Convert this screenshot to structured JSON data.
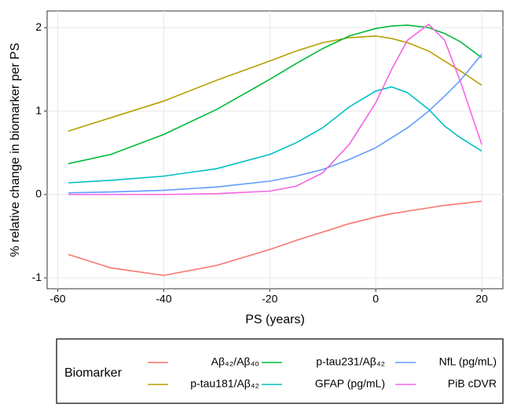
{
  "chart_data": {
    "type": "line",
    "x_label": "PS (years)",
    "y_label": "% relative change in biomarker per PS",
    "x": [
      -58,
      -50,
      -40,
      -30,
      -20,
      -15,
      -10,
      -5,
      0,
      3,
      6,
      10,
      13,
      16,
      20
    ],
    "series": [
      {
        "name": "Aβ₄₂/Aβ₄₀",
        "color": "#F8766D",
        "values": [
          -0.72,
          -0.88,
          -0.97,
          -0.85,
          -0.66,
          -0.55,
          -0.45,
          -0.35,
          -0.27,
          -0.23,
          -0.2,
          -0.16,
          -0.13,
          -0.11,
          -0.08
        ]
      },
      {
        "name": "p-tau181/Aβ₄₂",
        "color": "#B79F00",
        "values": [
          0.76,
          0.92,
          1.12,
          1.37,
          1.6,
          1.72,
          1.82,
          1.88,
          1.9,
          1.87,
          1.82,
          1.72,
          1.6,
          1.48,
          1.31
        ]
      },
      {
        "name": "p-tau231/Aβ₄₂",
        "color": "#00BA38",
        "values": [
          0.37,
          0.48,
          0.72,
          1.02,
          1.38,
          1.57,
          1.75,
          1.9,
          1.99,
          2.02,
          2.03,
          2.0,
          1.93,
          1.83,
          1.64
        ]
      },
      {
        "name": "GFAP (pg/mL)",
        "color": "#00BFC4",
        "values": [
          0.14,
          0.17,
          0.22,
          0.31,
          0.48,
          0.62,
          0.8,
          1.05,
          1.24,
          1.29,
          1.22,
          1.02,
          0.82,
          0.68,
          0.52
        ]
      },
      {
        "name": "NfL (pg/mL)",
        "color": "#619CFF",
        "values": [
          0.02,
          0.03,
          0.05,
          0.09,
          0.16,
          0.22,
          0.3,
          0.42,
          0.56,
          0.68,
          0.8,
          1.0,
          1.18,
          1.37,
          1.68
        ]
      },
      {
        "name": "PiB cDVR",
        "color": "#F564E3",
        "values": [
          0,
          0,
          0,
          0.01,
          0.04,
          0.1,
          0.26,
          0.6,
          1.1,
          1.5,
          1.85,
          2.04,
          1.85,
          1.35,
          0.6
        ]
      }
    ],
    "legend_title": "Biomarker",
    "legend_position": "bottom",
    "xlim": [
      -62,
      24
    ],
    "xticks": [
      -60,
      -40,
      -20,
      0,
      20
    ],
    "ylim": [
      -1.13,
      2.2
    ],
    "yticks": [
      -1,
      0,
      1,
      2
    ],
    "grid": true
  }
}
